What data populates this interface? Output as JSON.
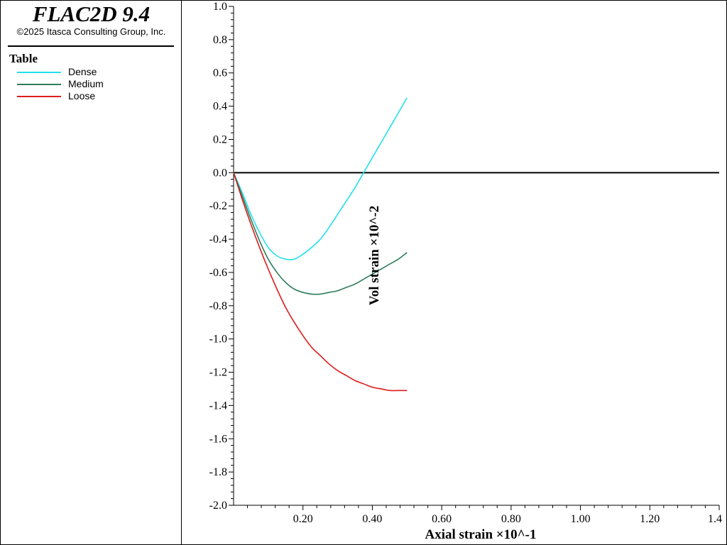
{
  "app": {
    "title": "FLAC2D 9.4",
    "copyright": "©2025 Itasca Consulting Group, Inc."
  },
  "legend": {
    "title": "Table",
    "items": [
      {
        "label": "Dense",
        "color": "#22e0ec"
      },
      {
        "label": "Medium",
        "color": "#2e7d5b"
      },
      {
        "label": "Loose",
        "color": "#dd1c1c"
      }
    ]
  },
  "chart_data": {
    "type": "line",
    "xlabel": "Axial strain ×10^-1",
    "ylabel": "Vol strain ×10^-2",
    "xlim": [
      0,
      1.4
    ],
    "ylim": [
      -2.0,
      1.0
    ],
    "x_tick_labels": [
      "0.20",
      "0.40",
      "0.60",
      "0.80",
      "1.00",
      "1.20",
      "1.4"
    ],
    "y_tick_labels": [
      "1.0",
      "0.8",
      "0.6",
      "0.4",
      "0.2",
      "0.0",
      "-0.2",
      "-0.4",
      "-0.6",
      "-0.8",
      "-1.0",
      "-1.2",
      "-1.4",
      "-1.6",
      "-1.8",
      "-2.0"
    ],
    "grid": false,
    "zero_line": true,
    "series": [
      {
        "name": "Dense",
        "color": "#22e0ec",
        "x": [
          0,
          0.025,
          0.05,
          0.075,
          0.1,
          0.125,
          0.15,
          0.175,
          0.2,
          0.225,
          0.25,
          0.275,
          0.3,
          0.325,
          0.35,
          0.375,
          0.4,
          0.425,
          0.45,
          0.475,
          0.5
        ],
        "y": [
          0,
          -0.12,
          -0.25,
          -0.36,
          -0.45,
          -0.5,
          -0.52,
          -0.52,
          -0.49,
          -0.45,
          -0.4,
          -0.33,
          -0.25,
          -0.17,
          -0.09,
          0.0,
          0.09,
          0.18,
          0.27,
          0.36,
          0.45
        ]
      },
      {
        "name": "Medium",
        "color": "#2e7d5b",
        "x": [
          0,
          0.025,
          0.05,
          0.075,
          0.1,
          0.125,
          0.15,
          0.175,
          0.2,
          0.225,
          0.25,
          0.275,
          0.3,
          0.325,
          0.35,
          0.375,
          0.4,
          0.425,
          0.45,
          0.475,
          0.5
        ],
        "y": [
          0,
          -0.14,
          -0.28,
          -0.41,
          -0.52,
          -0.6,
          -0.66,
          -0.7,
          -0.72,
          -0.73,
          -0.73,
          -0.72,
          -0.71,
          -0.69,
          -0.67,
          -0.64,
          -0.61,
          -0.58,
          -0.55,
          -0.52,
          -0.48
        ]
      },
      {
        "name": "Loose",
        "color": "#dd1c1c",
        "x": [
          0,
          0.025,
          0.05,
          0.075,
          0.1,
          0.125,
          0.15,
          0.175,
          0.2,
          0.225,
          0.25,
          0.275,
          0.3,
          0.325,
          0.35,
          0.375,
          0.4,
          0.425,
          0.45,
          0.475,
          0.5
        ],
        "y": [
          0,
          -0.16,
          -0.31,
          -0.45,
          -0.58,
          -0.7,
          -0.81,
          -0.9,
          -0.98,
          -1.05,
          -1.1,
          -1.15,
          -1.19,
          -1.22,
          -1.25,
          -1.27,
          -1.29,
          -1.3,
          -1.31,
          -1.31,
          -1.31
        ]
      }
    ]
  }
}
